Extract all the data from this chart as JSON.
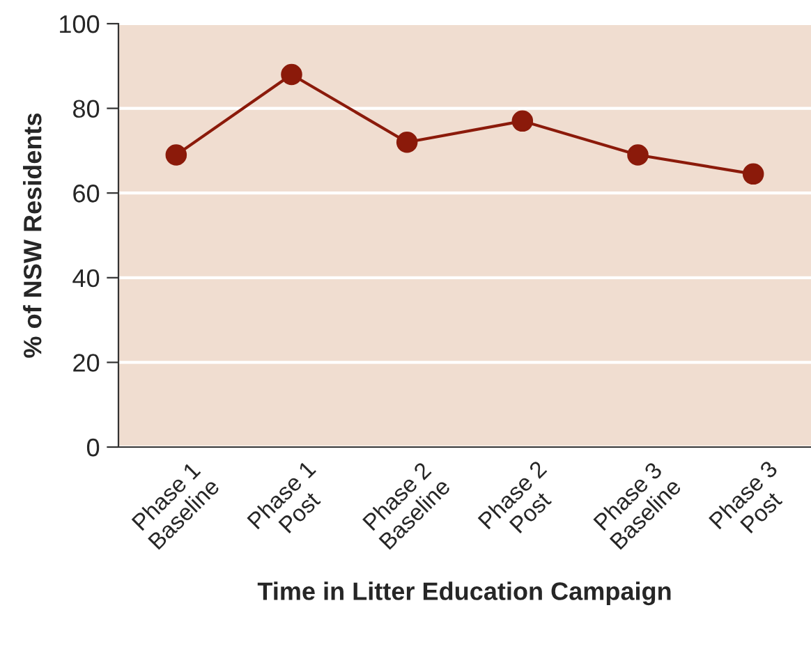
{
  "chart_data": {
    "type": "line",
    "categories": [
      "Phase 1\nBaseline",
      "Phase 1\nPost",
      "Phase 2\nBaseline",
      "Phase 2\nPost",
      "Phase 3\nBaseline",
      "Phase 3\nPost"
    ],
    "series": [
      {
        "color": "#8b1a0a",
        "values": [
          69,
          88,
          72,
          77,
          69,
          64.5
        ]
      }
    ],
    "xlabel": "Time in Litter Education Campaign",
    "ylabel": "% of NSW Residents",
    "ylim": [
      0,
      100
    ],
    "yticks": [
      0,
      20,
      40,
      60,
      80,
      100
    ],
    "grid": "y",
    "marker": "circle",
    "line_style": "solid",
    "legend": false
  }
}
